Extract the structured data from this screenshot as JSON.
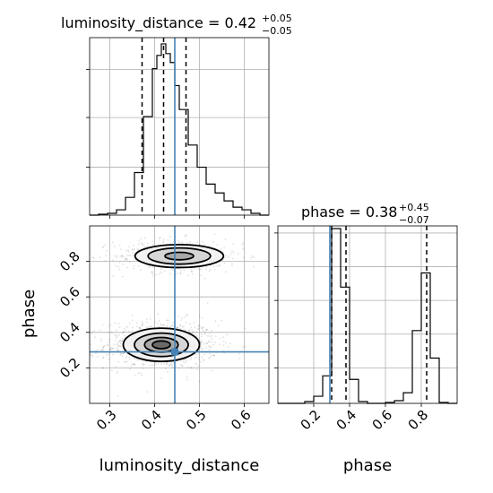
{
  "chart_data": {
    "type": "corner",
    "parameters": [
      "luminosity_distance",
      "phase"
    ],
    "truths": {
      "luminosity_distance": 0.445,
      "phase": 0.29
    },
    "truth_color": "#4682b4",
    "grid": true,
    "panels": [
      {
        "id": "hist-luminosity_distance",
        "type": "histogram",
        "title": {
          "text": "luminosity_distance = 0.42",
          "sup": "+0.05",
          "sub": "−0.05"
        },
        "xlim": [
          0.255,
          0.655
        ],
        "quantile_lines": [
          0.372,
          0.42,
          0.47
        ],
        "truth": 0.445,
        "bins": [
          {
            "x0": 0.255,
            "x1": 0.275,
            "h": 0.0
          },
          {
            "x0": 0.275,
            "x1": 0.295,
            "h": 0.005
          },
          {
            "x0": 0.295,
            "x1": 0.315,
            "h": 0.01
          },
          {
            "x0": 0.315,
            "x1": 0.335,
            "h": 0.03
          },
          {
            "x0": 0.335,
            "x1": 0.355,
            "h": 0.1
          },
          {
            "x0": 0.355,
            "x1": 0.375,
            "h": 0.24
          },
          {
            "x0": 0.375,
            "x1": 0.395,
            "h": 0.555
          },
          {
            "x0": 0.395,
            "x1": 0.405,
            "h": 0.825
          },
          {
            "x0": 0.405,
            "x1": 0.415,
            "h": 0.9
          },
          {
            "x0": 0.415,
            "x1": 0.425,
            "h": 0.965
          },
          {
            "x0": 0.425,
            "x1": 0.435,
            "h": 0.91
          },
          {
            "x0": 0.435,
            "x1": 0.445,
            "h": 0.86
          },
          {
            "x0": 0.445,
            "x1": 0.455,
            "h": 0.73
          },
          {
            "x0": 0.455,
            "x1": 0.475,
            "h": 0.595
          },
          {
            "x0": 0.475,
            "x1": 0.495,
            "h": 0.395
          },
          {
            "x0": 0.495,
            "x1": 0.515,
            "h": 0.27
          },
          {
            "x0": 0.515,
            "x1": 0.535,
            "h": 0.175
          },
          {
            "x0": 0.535,
            "x1": 0.555,
            "h": 0.125
          },
          {
            "x0": 0.555,
            "x1": 0.575,
            "h": 0.08
          },
          {
            "x0": 0.575,
            "x1": 0.595,
            "h": 0.045
          },
          {
            "x0": 0.595,
            "x1": 0.615,
            "h": 0.03
          },
          {
            "x0": 0.615,
            "x1": 0.635,
            "h": 0.01
          },
          {
            "x0": 0.635,
            "x1": 0.655,
            "h": 0.0
          }
        ]
      },
      {
        "id": "hist-phase",
        "type": "histogram",
        "title": {
          "text": "phase = 0.38",
          "sup": "+0.45",
          "sub": "−0.07"
        },
        "xlim": [
          0.0,
          1.0
        ],
        "xticks": [
          0.2,
          0.4,
          0.6,
          0.8
        ],
        "xlabel": "phase",
        "quantile_lines": [
          0.3,
          0.38,
          0.83
        ],
        "truth": 0.29,
        "bins": [
          {
            "x0": 0.0,
            "x1": 0.15,
            "h": 0.0
          },
          {
            "x0": 0.15,
            "x1": 0.2,
            "h": 0.01
          },
          {
            "x0": 0.2,
            "x1": 0.25,
            "h": 0.04
          },
          {
            "x0": 0.25,
            "x1": 0.3,
            "h": 0.155
          },
          {
            "x0": 0.3,
            "x1": 0.35,
            "h": 0.985
          },
          {
            "x0": 0.35,
            "x1": 0.4,
            "h": 0.655
          },
          {
            "x0": 0.4,
            "x1": 0.45,
            "h": 0.135
          },
          {
            "x0": 0.45,
            "x1": 0.5,
            "h": 0.01
          },
          {
            "x0": 0.5,
            "x1": 0.6,
            "h": 0.0
          },
          {
            "x0": 0.6,
            "x1": 0.65,
            "h": 0.005
          },
          {
            "x0": 0.65,
            "x1": 0.7,
            "h": 0.015
          },
          {
            "x0": 0.7,
            "x1": 0.75,
            "h": 0.06
          },
          {
            "x0": 0.75,
            "x1": 0.8,
            "h": 0.41
          },
          {
            "x0": 0.8,
            "x1": 0.85,
            "h": 0.735
          },
          {
            "x0": 0.85,
            "x1": 0.9,
            "h": 0.255
          },
          {
            "x0": 0.9,
            "x1": 0.95,
            "h": 0.005
          },
          {
            "x0": 0.95,
            "x1": 1.0,
            "h": 0.0
          }
        ]
      },
      {
        "id": "joint-luminosity_distance-phase",
        "type": "2d-density",
        "xlabel": "luminosity_distance",
        "ylabel": "phase",
        "xlim": [
          0.255,
          0.655
        ],
        "ylim": [
          0.0,
          1.0
        ],
        "xticks": [
          0.3,
          0.4,
          0.5,
          0.6
        ],
        "yticks": [
          0.2,
          0.4,
          0.6,
          0.8
        ],
        "truth_point": {
          "x": 0.445,
          "y": 0.29
        },
        "modes": [
          {
            "cx": 0.415,
            "cy": 0.33,
            "sx": 0.05,
            "sy": 0.055,
            "weight": 0.65
          },
          {
            "cx": 0.455,
            "cy": 0.83,
            "sx": 0.058,
            "sy": 0.038,
            "weight": 0.35
          }
        ]
      }
    ]
  }
}
